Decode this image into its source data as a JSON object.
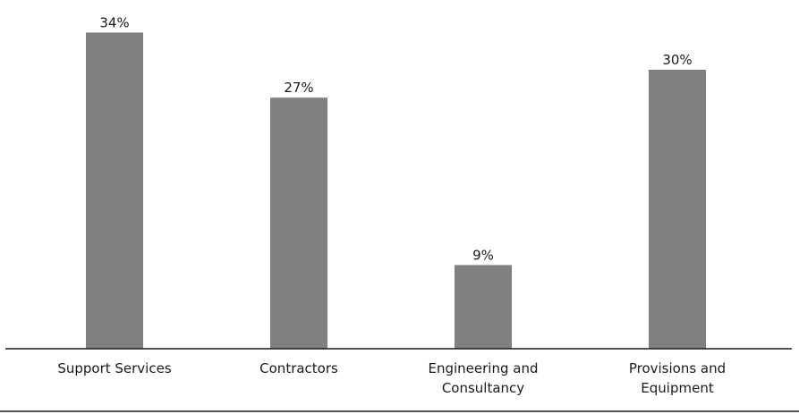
{
  "chart_data": {
    "type": "bar",
    "categories": [
      [
        "Support Services"
      ],
      [
        "Contractors"
      ],
      [
        "Engineering and",
        "Consultancy"
      ],
      [
        "Provisions and",
        "Equipment"
      ]
    ],
    "values": [
      34,
      27,
      9,
      30
    ],
    "value_labels": [
      "34%",
      "27%",
      "9%",
      "30%"
    ],
    "title": "",
    "xlabel": "",
    "ylabel": "",
    "ylim": [
      0,
      35
    ],
    "grid": false,
    "legend": "none",
    "colors": {
      "bar": "#808080",
      "axis": "#1a1a1a",
      "text": "#1a1a1a"
    }
  }
}
